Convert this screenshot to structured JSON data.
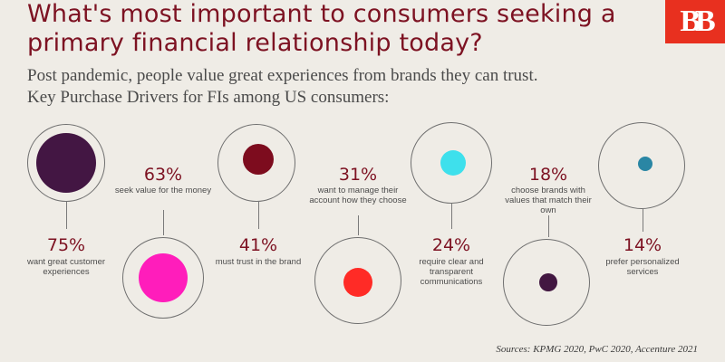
{
  "header": {
    "title": "What's most important to consumers seeking a primary financial relationship today?",
    "subtitle_line1": "Post pandemic, people value great experiences from brands they can trust.",
    "subtitle_line2": "Key Purchase Drivers for FIs among US consumers:",
    "logo_text": "BB"
  },
  "chart_data": {
    "type": "bubble",
    "categories": [
      "want great customer experiences",
      "seek value for the money",
      "must trust in the brand",
      "want to manage their account how they choose",
      "require clear and transparent communications",
      "choose brands with values that match their own",
      "prefer personalized services"
    ],
    "values": [
      75,
      63,
      41,
      31,
      24,
      18,
      14
    ],
    "unit": "%",
    "colors": [
      "#431643",
      "#ff1dbb",
      "#7d0c1e",
      "#ff2b26",
      "#3ee0ec",
      "#421741",
      "#2a86a4"
    ]
  },
  "drivers": [
    {
      "pct": "75%",
      "desc": "want great customer experiences"
    },
    {
      "pct": "63%",
      "desc": "seek value for the money"
    },
    {
      "pct": "41%",
      "desc": "must trust in the brand"
    },
    {
      "pct": "31%",
      "desc": "want to manage their account how they choose"
    },
    {
      "pct": "24%",
      "desc": "require clear and transparent communications"
    },
    {
      "pct": "18%",
      "desc": "choose brands with values that match their own"
    },
    {
      "pct": "14%",
      "desc": "prefer personalized services"
    }
  ],
  "footer": {
    "sources": "Sources:  KPMG 2020, PwC 2020, Accenture 2021"
  }
}
